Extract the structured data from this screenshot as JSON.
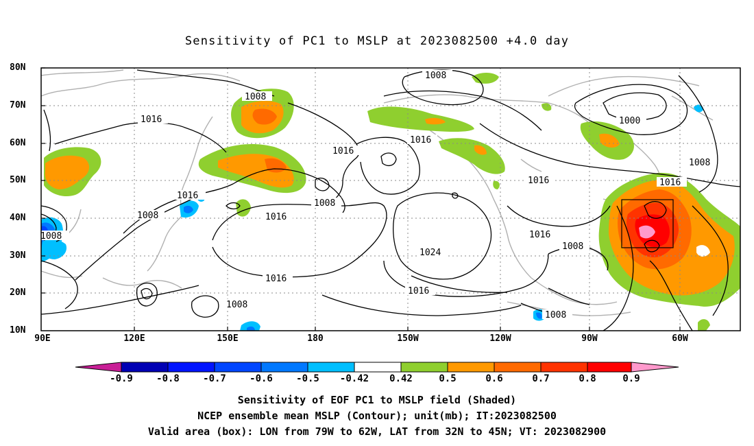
{
  "title": "Sensitivity of PC1 to MSLP at 2023082500 +4.0 day",
  "lat_labels": [
    "80N",
    "70N",
    "60N",
    "50N",
    "40N",
    "30N",
    "20N",
    "10N"
  ],
  "lon_labels": [
    "90E",
    "120E",
    "150E",
    "180",
    "150W",
    "120W",
    "90W",
    "60W"
  ],
  "contour_labels": [
    "1008",
    "1008",
    "1016",
    "1016",
    "1016",
    "1008",
    "1016",
    "1016",
    "1008",
    "1008",
    "1016",
    "1024",
    "1016",
    "1016",
    "1016",
    "1008",
    "1008",
    "1008",
    "1000",
    "1008",
    "1016"
  ],
  "colorbar": {
    "labels": [
      "-0.9",
      "-0.8",
      "-0.7",
      "-0.6",
      "-0.5",
      "-0.42",
      "0.42",
      "0.5",
      "0.6",
      "0.7",
      "0.8",
      "0.9"
    ],
    "colors": [
      "#0000b4",
      "#0014ff",
      "#0046ff",
      "#0078ff",
      "#00bfff",
      "#ffffff",
      "#8fcf2f",
      "#ff9900",
      "#ff6a00",
      "#ff3300",
      "#ff0000"
    ],
    "low_end_color": "#c81e96",
    "high_end_color": "#ff99cc"
  },
  "caption": {
    "line1": "Sensitivity of EOF PC1 to MSLP field (Shaded)",
    "line2": "NCEP ensemble mean MSLP (Contour); unit(mb); IT:2023082500",
    "line3": "Valid area (box): LON from 79W to 62W, LAT from 32N to 45N; VT: 2023082900"
  },
  "valid_box": {
    "lon_range": [
      "79W",
      "62W"
    ],
    "lat_range": [
      "32N",
      "45N"
    ]
  }
}
